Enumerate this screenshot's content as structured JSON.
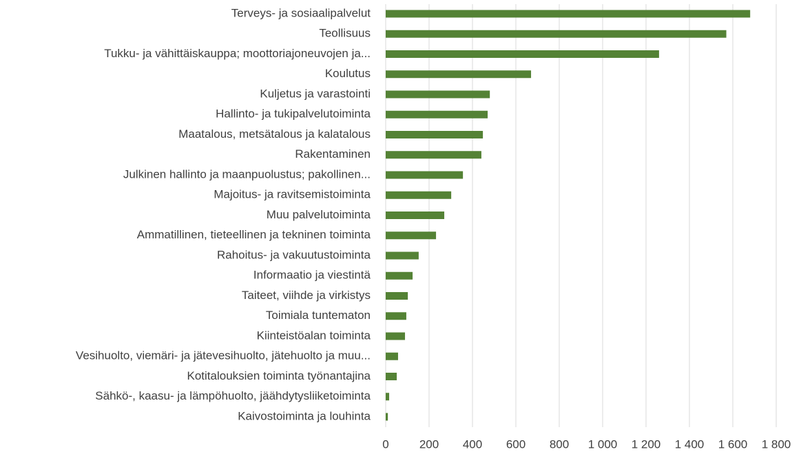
{
  "chart_data": {
    "type": "hbar",
    "categories": [
      "Terveys- ja sosiaalipalvelut",
      "Teollisuus",
      "Tukku- ja vähittäiskauppa; moottoriajoneuvojen ja...",
      "Koulutus",
      "Kuljetus ja varastointi",
      "Hallinto- ja tukipalvelutoiminta",
      "Maatalous, metsätalous ja kalatalous",
      "Rakentaminen",
      "Julkinen hallinto ja maanpuolustus; pakollinen...",
      "Majoitus- ja ravitsemistoiminta",
      "Muu palvelutoiminta",
      "Ammatillinen, tieteellinen ja tekninen toiminta",
      "Rahoitus- ja vakuutustoiminta",
      "Informaatio ja viestintä",
      "Taiteet, viihde ja virkistys",
      "Toimiala tuntematon",
      "Kiinteistöalan toiminta",
      "Vesihuolto, viemäri- ja jätevesihuolto, jätehuolto ja muu...",
      "Kotitalouksien toiminta työnantajina",
      "Sähkö-, kaasu- ja lämpöhuolto, jäähdytysliiketoiminta",
      "Kaivostoiminta ja louhinta"
    ],
    "values": [
      1680,
      1570,
      1260,
      670,
      480,
      470,
      448,
      441,
      356,
      302,
      270,
      232,
      152,
      124,
      102,
      95,
      89,
      57,
      51,
      16,
      10
    ],
    "color": "#548235",
    "xlim": [
      0,
      1800
    ],
    "xticks": [
      0,
      200,
      400,
      600,
      800,
      {
        "value": 1000,
        "label": "1 000"
      },
      {
        "value": 1200,
        "label": "1 200"
      },
      {
        "value": 1400,
        "label": "1 400"
      },
      {
        "value": 1600,
        "label": "1 600"
      },
      {
        "value": 1800,
        "label": "1 800"
      }
    ],
    "grid": true
  }
}
